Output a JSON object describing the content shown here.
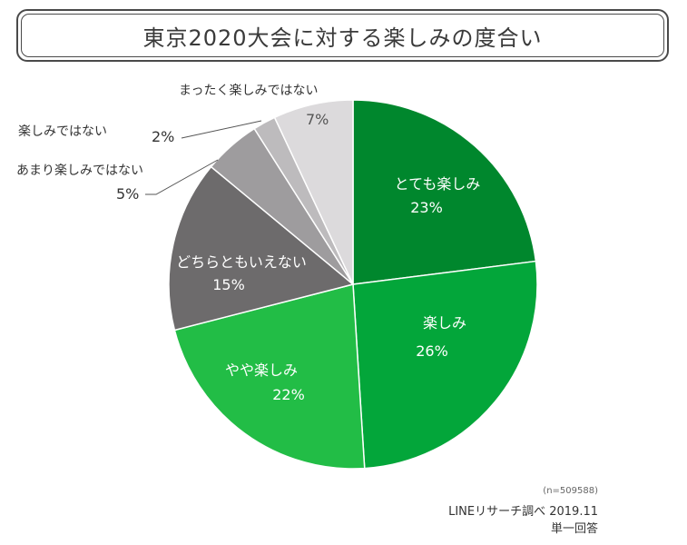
{
  "chart_data": {
    "type": "pie",
    "title": "東京2020大会に対する楽しみの度合い",
    "start": "12 o'clock",
    "direction": "clockwise",
    "slices": [
      {
        "label": "とても楽しみ",
        "value": 23,
        "value_label": "23%",
        "color": "#00872d"
      },
      {
        "label": "楽しみ",
        "value": 26,
        "value_label": "26%",
        "color": "#03a63a"
      },
      {
        "label": "やや楽しみ",
        "value": 22,
        "value_label": "22%",
        "color": "#22bd46"
      },
      {
        "label": "どちらともいえない",
        "value": 15,
        "value_label": "15%",
        "color": "#6d6b6c"
      },
      {
        "label": "あまり楽しみではない",
        "value": 5,
        "value_label": "5%",
        "color": "#9e9c9e"
      },
      {
        "label": "楽しみではない",
        "value": 2,
        "value_label": "2%",
        "color": "#bdbbbd"
      },
      {
        "label": "まったく楽しみではない",
        "value": 7,
        "value_label": "7%",
        "color": "#dcdadc"
      }
    ]
  },
  "notes": {
    "sample": "(n=509588)",
    "source": "LINEリサーチ調べ 2019.11",
    "answer_type": "単一回答"
  }
}
